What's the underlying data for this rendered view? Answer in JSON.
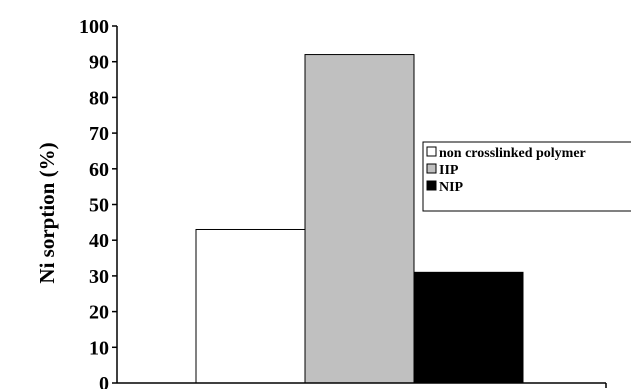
{
  "chart_data": {
    "type": "bar",
    "title": "",
    "xlabel": "",
    "ylabel": "Ni sorption (%)",
    "ylim": [
      0,
      100
    ],
    "yticks": [
      0,
      10,
      20,
      30,
      40,
      50,
      60,
      70,
      80,
      90,
      100
    ],
    "grid": false,
    "legend_placement": "right",
    "series": [
      {
        "name": "non crosslinked polymer",
        "value": 43,
        "color": "#ffffff"
      },
      {
        "name": "IIP",
        "value": 92,
        "color": "#c0c0c0"
      },
      {
        "name": "NIP",
        "value": 31,
        "color": "#000000"
      }
    ]
  }
}
